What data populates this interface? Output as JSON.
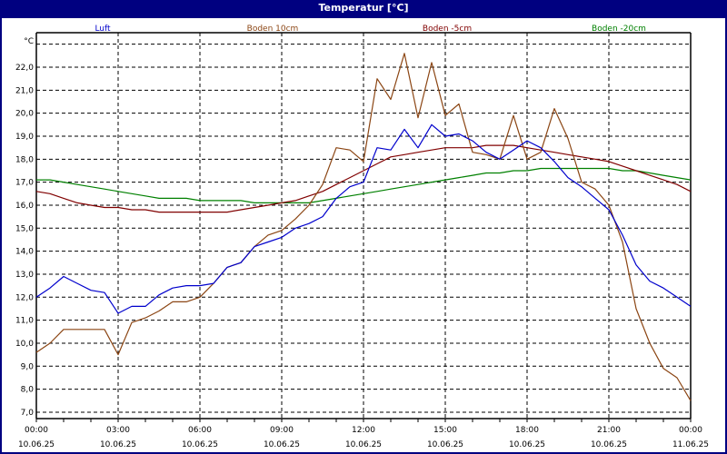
{
  "window": {
    "title": "Temperatur [°C]"
  },
  "colors": {
    "background": "#000080",
    "plot_bg": "#ffffff",
    "grid": "#000000"
  },
  "chart_data": {
    "type": "line",
    "title": "Temperatur [°C]",
    "xlabel": "",
    "ylabel": "°C",
    "ylim": [
      7.0,
      23.0
    ],
    "y_ticks": [
      "7,0",
      "8,0",
      "9,0",
      "10,0",
      "11,0",
      "12,0",
      "13,0",
      "14,0",
      "15,0",
      "16,0",
      "17,0",
      "18,0",
      "19,0",
      "20,0",
      "21,0",
      "22,0"
    ],
    "x_ticks": [
      {
        "time": "00:00",
        "date": "10.06.25"
      },
      {
        "time": "03:00",
        "date": "10.06.25"
      },
      {
        "time": "06:00",
        "date": "10.06.25"
      },
      {
        "time": "09:00",
        "date": "10.06.25"
      },
      {
        "time": "12:00",
        "date": "10.06.25"
      },
      {
        "time": "15:00",
        "date": "10.06.25"
      },
      {
        "time": "18:00",
        "date": "10.06.25"
      },
      {
        "time": "21:00",
        "date": "10.06.25"
      },
      {
        "time": "00:00",
        "date": "11.06.25"
      }
    ],
    "grid": true,
    "legend_position": "top",
    "x_hours": [
      0,
      0.5,
      1,
      1.5,
      2,
      2.5,
      3,
      3.5,
      4,
      4.5,
      5,
      5.5,
      6,
      6.5,
      7,
      7.5,
      8,
      8.5,
      9,
      9.5,
      10,
      10.5,
      11,
      11.5,
      12,
      12.5,
      13,
      13.5,
      14,
      14.5,
      15,
      15.5,
      16,
      16.5,
      17,
      17.5,
      18,
      18.5,
      19,
      19.5,
      20,
      20.5,
      21,
      21.5,
      22,
      22.5,
      23,
      23.5,
      24
    ],
    "series": [
      {
        "name": "Luft",
        "color": "#0000cc",
        "values": [
          12.0,
          12.4,
          12.9,
          12.6,
          12.3,
          12.2,
          11.3,
          11.6,
          11.6,
          12.1,
          12.4,
          12.5,
          12.5,
          12.6,
          13.3,
          13.5,
          14.2,
          14.4,
          14.6,
          15.0,
          15.2,
          15.5,
          16.3,
          16.8,
          17.0,
          18.5,
          18.4,
          19.3,
          18.5,
          19.5,
          19.0,
          19.1,
          18.8,
          18.3,
          18.0,
          18.4,
          18.8,
          18.5,
          17.9,
          17.2,
          16.8,
          16.3,
          15.8,
          14.7,
          13.4,
          12.7,
          12.4,
          12.0,
          11.6
        ]
      },
      {
        "name": "Boden 10cm",
        "color": "#8b4513",
        "values": [
          9.6,
          10.0,
          10.6,
          10.6,
          10.6,
          10.6,
          9.5,
          10.9,
          11.1,
          11.4,
          11.8,
          11.8,
          12.0,
          12.6,
          13.3,
          13.5,
          14.2,
          14.7,
          14.9,
          15.4,
          16.0,
          16.9,
          18.5,
          18.4,
          17.9,
          21.5,
          20.6,
          22.6,
          19.8,
          22.2,
          19.9,
          20.4,
          18.3,
          18.2,
          18.0,
          19.9,
          18.0,
          18.3,
          20.2,
          18.9,
          17.0,
          16.7,
          16.0,
          14.4,
          11.5,
          10.0,
          8.9,
          8.5,
          7.5
        ]
      },
      {
        "name": "Boden -5cm",
        "color": "#800000",
        "values": [
          16.6,
          16.5,
          16.3,
          16.1,
          16.0,
          15.9,
          15.9,
          15.8,
          15.8,
          15.7,
          15.7,
          15.7,
          15.7,
          15.7,
          15.7,
          15.8,
          15.9,
          16.0,
          16.1,
          16.2,
          16.4,
          16.6,
          16.9,
          17.2,
          17.5,
          17.8,
          18.1,
          18.2,
          18.3,
          18.4,
          18.5,
          18.5,
          18.5,
          18.6,
          18.6,
          18.6,
          18.5,
          18.4,
          18.3,
          18.2,
          18.1,
          18.0,
          17.9,
          17.7,
          17.5,
          17.3,
          17.1,
          16.9,
          16.6
        ]
      },
      {
        "name": "Boden -20cm",
        "color": "#008000",
        "values": [
          17.1,
          17.1,
          17.0,
          16.9,
          16.8,
          16.7,
          16.6,
          16.5,
          16.4,
          16.3,
          16.3,
          16.3,
          16.2,
          16.2,
          16.2,
          16.2,
          16.1,
          16.1,
          16.1,
          16.1,
          16.1,
          16.2,
          16.3,
          16.4,
          16.5,
          16.6,
          16.7,
          16.8,
          16.9,
          17.0,
          17.1,
          17.2,
          17.3,
          17.4,
          17.4,
          17.5,
          17.5,
          17.6,
          17.6,
          17.6,
          17.6,
          17.6,
          17.6,
          17.5,
          17.5,
          17.4,
          17.3,
          17.2,
          17.1
        ]
      }
    ]
  }
}
